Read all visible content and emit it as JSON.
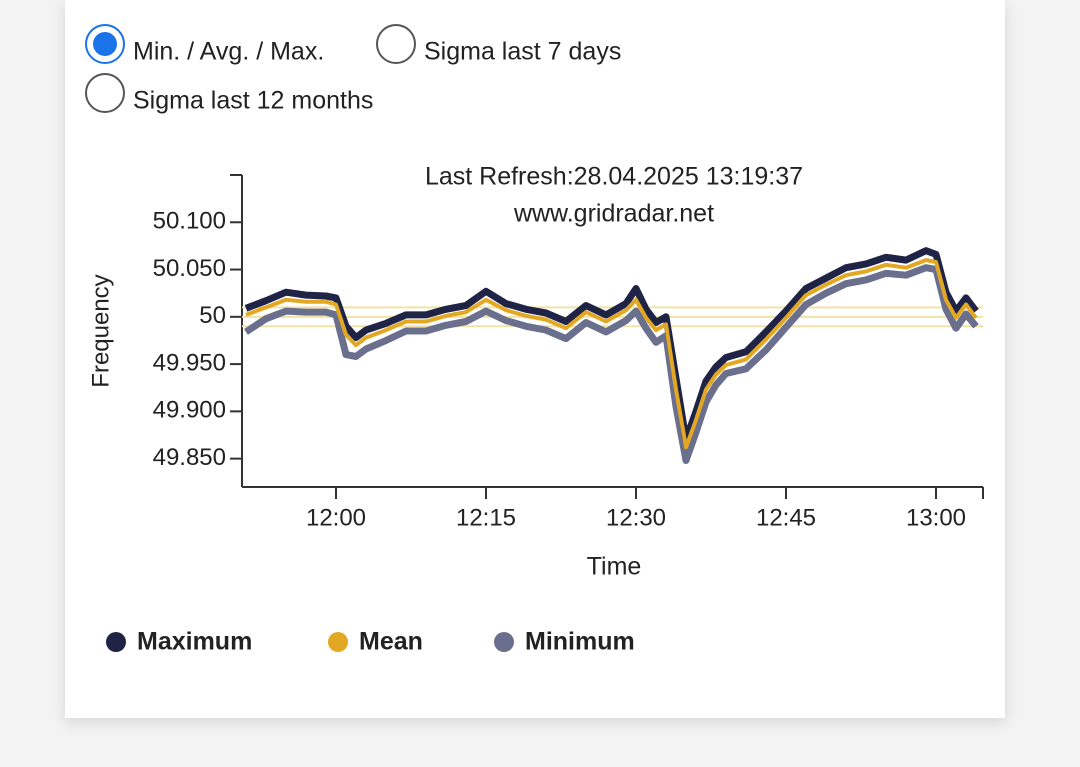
{
  "radio_options": [
    {
      "label": "Min. / Avg. / Max.",
      "selected": true
    },
    {
      "label": "Sigma last 7 days",
      "selected": false
    },
    {
      "label": "Sigma last 12 months",
      "selected": false
    }
  ],
  "chart_data": {
    "type": "line",
    "annotations": [
      "Last Refresh:28.04.2025 13:19:37",
      "www.gridradar.net"
    ],
    "x_label": "Time",
    "y_label": "Frequency",
    "x": [
      "11:51",
      "11:53",
      "11:55",
      "11:57",
      "11:59",
      "12:00",
      "12:01",
      "12:02",
      "12:03",
      "12:05",
      "12:07",
      "12:09",
      "12:11",
      "12:13",
      "12:15",
      "12:17",
      "12:19",
      "12:21",
      "12:23",
      "12:25",
      "12:27",
      "12:29",
      "12:30",
      "12:31",
      "12:32",
      "12:33",
      "12:34",
      "12:35",
      "12:36",
      "12:37",
      "12:38",
      "12:39",
      "12:41",
      "12:43",
      "12:45",
      "12:47",
      "12:49",
      "12:51",
      "12:53",
      "12:55",
      "12:57",
      "12:59",
      "13:00",
      "13:01",
      "13:02",
      "13:03",
      "13:04"
    ],
    "xlim": [
      "11:51",
      "13:05"
    ],
    "xticks": [
      "12:00",
      "12:15",
      "12:30",
      "12:45",
      "13:00"
    ],
    "ylim": [
      49.82,
      50.15
    ],
    "yticks": [
      {
        "value": 49.85,
        "label": "49.850"
      },
      {
        "value": 49.9,
        "label": "49.900"
      },
      {
        "value": 49.95,
        "label": "49.950"
      },
      50,
      {
        "value": 50.05,
        "label": "50.050"
      },
      {
        "value": 50.1,
        "label": "50.100"
      }
    ],
    "reference_lines": [
      50.01,
      50,
      49.99
    ],
    "reference_color": "#f1e3a8",
    "series": [
      {
        "name": "Minimum",
        "color": "#6b6f8e",
        "values": [
          49.984,
          49.998,
          50.006,
          50.005,
          50.005,
          50.002,
          49.96,
          49.958,
          49.966,
          49.975,
          49.985,
          49.985,
          49.991,
          49.995,
          50.006,
          49.996,
          49.99,
          49.986,
          49.977,
          49.994,
          49.984,
          49.996,
          50.006,
          49.988,
          49.973,
          49.98,
          49.905,
          49.848,
          49.878,
          49.91,
          49.928,
          49.94,
          49.945,
          49.965,
          49.989,
          50.013,
          50.025,
          50.035,
          50.039,
          50.046,
          50.044,
          50.052,
          50.05,
          50.008,
          49.988,
          50.003,
          49.99
        ]
      },
      {
        "name": "Maximum",
        "color": "#1f2447",
        "values": [
          50.009,
          50.017,
          50.026,
          50.023,
          50.022,
          50.02,
          49.99,
          49.978,
          49.986,
          49.993,
          50.002,
          50.002,
          50.008,
          50.012,
          50.027,
          50.014,
          50.008,
          50.004,
          49.995,
          50.012,
          50.002,
          50.014,
          50.03,
          50.008,
          49.994,
          50.0,
          49.935,
          49.87,
          49.9,
          49.932,
          49.947,
          49.957,
          49.963,
          49.984,
          50.006,
          50.03,
          50.041,
          50.052,
          50.056,
          50.063,
          50.06,
          50.07,
          50.066,
          50.026,
          50.006,
          50.02,
          50.006
        ]
      },
      {
        "name": "Mean",
        "color": "#e3a823",
        "values": [
          50.002,
          50.01,
          50.018,
          50.016,
          50.016,
          50.013,
          49.981,
          49.97,
          49.978,
          49.986,
          49.995,
          49.995,
          50.001,
          50.005,
          50.018,
          50.007,
          50.001,
          49.997,
          49.988,
          50.005,
          49.995,
          50.007,
          50.018,
          49.999,
          49.986,
          49.992,
          49.923,
          49.862,
          49.891,
          49.923,
          49.939,
          49.949,
          49.955,
          49.976,
          49.999,
          50.023,
          50.034,
          50.044,
          50.048,
          50.055,
          50.052,
          50.06,
          50.058,
          50.018,
          49.999,
          50.013,
          49.999
        ]
      }
    ],
    "legend_order": [
      1,
      2,
      0
    ]
  }
}
